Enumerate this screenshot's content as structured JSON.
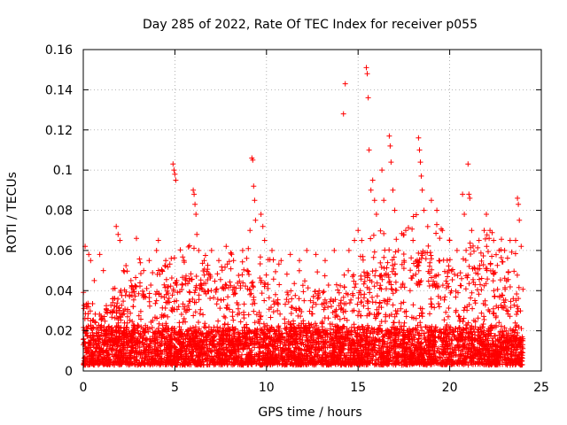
{
  "chart_data": {
    "type": "scatter",
    "title": "Day 285 of 2022, Rate Of TEC Index for receiver p055",
    "xlabel": "GPS time / hours",
    "ylabel": "ROTI / TECUs",
    "xlim": [
      0,
      25
    ],
    "ylim": [
      0,
      0.16
    ],
    "xticks": [
      0,
      5,
      10,
      15,
      20,
      25
    ],
    "yticks": [
      0,
      0.02,
      0.04,
      0.06,
      0.08,
      0.1,
      0.12,
      0.14,
      0.16
    ],
    "xtick_labels": [
      "0",
      "5",
      "10",
      "15",
      "20",
      "25"
    ],
    "ytick_labels": [
      "0",
      "0.02",
      "0.04",
      "0.06",
      "0.08",
      "0.1",
      "0.12",
      "0.14",
      "0.16"
    ],
    "grid": true,
    "marker": "+",
    "color": "#ff0000",
    "series": [
      {
        "name": "ROTI",
        "points": [
          [
            0.1,
            0.062
          ],
          [
            0.3,
            0.058
          ],
          [
            0.4,
            0.055
          ],
          [
            0.6,
            0.045
          ],
          [
            0.9,
            0.058
          ],
          [
            1.1,
            0.05
          ],
          [
            1.8,
            0.072
          ],
          [
            1.9,
            0.068
          ],
          [
            2.0,
            0.065
          ],
          [
            2.2,
            0.05
          ],
          [
            2.6,
            0.045
          ],
          [
            2.9,
            0.066
          ],
          [
            3.3,
            0.05
          ],
          [
            3.6,
            0.055
          ],
          [
            4.0,
            0.06
          ],
          [
            4.1,
            0.065
          ],
          [
            4.3,
            0.05
          ],
          [
            4.5,
            0.055
          ],
          [
            4.8,
            0.056
          ],
          [
            4.9,
            0.103
          ],
          [
            4.95,
            0.1
          ],
          [
            5.0,
            0.098
          ],
          [
            5.05,
            0.095
          ],
          [
            5.1,
            0.045
          ],
          [
            5.5,
            0.055
          ],
          [
            6.0,
            0.09
          ],
          [
            6.05,
            0.088
          ],
          [
            6.1,
            0.083
          ],
          [
            6.15,
            0.078
          ],
          [
            6.2,
            0.068
          ],
          [
            6.3,
            0.06
          ],
          [
            6.6,
            0.055
          ],
          [
            7.0,
            0.06
          ],
          [
            7.4,
            0.055
          ],
          [
            7.8,
            0.062
          ],
          [
            8.2,
            0.055
          ],
          [
            8.7,
            0.06
          ],
          [
            9.1,
            0.07
          ],
          [
            9.2,
            0.106
          ],
          [
            9.25,
            0.105
          ],
          [
            9.3,
            0.092
          ],
          [
            9.35,
            0.085
          ],
          [
            9.4,
            0.075
          ],
          [
            9.7,
            0.078
          ],
          [
            9.8,
            0.072
          ],
          [
            9.9,
            0.065
          ],
          [
            10.3,
            0.06
          ],
          [
            10.8,
            0.055
          ],
          [
            11.3,
            0.058
          ],
          [
            11.8,
            0.055
          ],
          [
            12.2,
            0.06
          ],
          [
            12.7,
            0.058
          ],
          [
            13.2,
            0.055
          ],
          [
            13.7,
            0.06
          ],
          [
            14.2,
            0.128
          ],
          [
            14.3,
            0.143
          ],
          [
            14.5,
            0.06
          ],
          [
            14.8,
            0.065
          ],
          [
            15.0,
            0.07
          ],
          [
            15.2,
            0.065
          ],
          [
            15.45,
            0.151
          ],
          [
            15.5,
            0.148
          ],
          [
            15.55,
            0.136
          ],
          [
            15.6,
            0.11
          ],
          [
            15.7,
            0.09
          ],
          [
            15.8,
            0.095
          ],
          [
            15.9,
            0.085
          ],
          [
            16.0,
            0.078
          ],
          [
            16.3,
            0.1
          ],
          [
            16.4,
            0.085
          ],
          [
            16.7,
            0.117
          ],
          [
            16.75,
            0.112
          ],
          [
            16.8,
            0.104
          ],
          [
            16.9,
            0.09
          ],
          [
            17.0,
            0.08
          ],
          [
            17.2,
            0.06
          ],
          [
            17.6,
            0.07
          ],
          [
            18.0,
            0.065
          ],
          [
            18.3,
            0.116
          ],
          [
            18.35,
            0.11
          ],
          [
            18.4,
            0.104
          ],
          [
            18.45,
            0.097
          ],
          [
            18.5,
            0.09
          ],
          [
            18.6,
            0.08
          ],
          [
            19.0,
            0.085
          ],
          [
            19.3,
            0.08
          ],
          [
            19.6,
            0.07
          ],
          [
            20.0,
            0.065
          ],
          [
            20.4,
            0.06
          ],
          [
            20.7,
            0.088
          ],
          [
            20.8,
            0.078
          ],
          [
            21.0,
            0.103
          ],
          [
            21.05,
            0.088
          ],
          [
            21.1,
            0.086
          ],
          [
            21.2,
            0.07
          ],
          [
            21.6,
            0.065
          ],
          [
            22.0,
            0.078
          ],
          [
            22.2,
            0.07
          ],
          [
            22.4,
            0.065
          ],
          [
            22.7,
            0.06
          ],
          [
            23.0,
            0.06
          ],
          [
            23.3,
            0.065
          ],
          [
            23.6,
            0.065
          ],
          [
            23.7,
            0.086
          ],
          [
            23.75,
            0.083
          ],
          [
            23.8,
            0.075
          ],
          [
            23.9,
            0.062
          ]
        ],
        "dense_band": {
          "x_range": [
            0,
            24
          ],
          "y_min_typical": 0.003,
          "y_max_typical": [
            [
              0,
              0.035
            ],
            [
              1,
              0.03
            ],
            [
              2,
              0.04
            ],
            [
              3,
              0.045
            ],
            [
              4,
              0.04
            ],
            [
              5,
              0.045
            ],
            [
              6,
              0.05
            ],
            [
              7,
              0.05
            ],
            [
              8,
              0.045
            ],
            [
              9,
              0.05
            ],
            [
              10,
              0.045
            ],
            [
              11,
              0.04
            ],
            [
              12,
              0.04
            ],
            [
              13,
              0.04
            ],
            [
              14,
              0.035
            ],
            [
              15,
              0.045
            ],
            [
              16,
              0.055
            ],
            [
              17,
              0.05
            ],
            [
              18,
              0.06
            ],
            [
              19,
              0.06
            ],
            [
              20,
              0.05
            ],
            [
              21,
              0.05
            ],
            [
              22,
              0.055
            ],
            [
              23,
              0.055
            ],
            [
              24,
              0.045
            ]
          ]
        }
      }
    ]
  }
}
